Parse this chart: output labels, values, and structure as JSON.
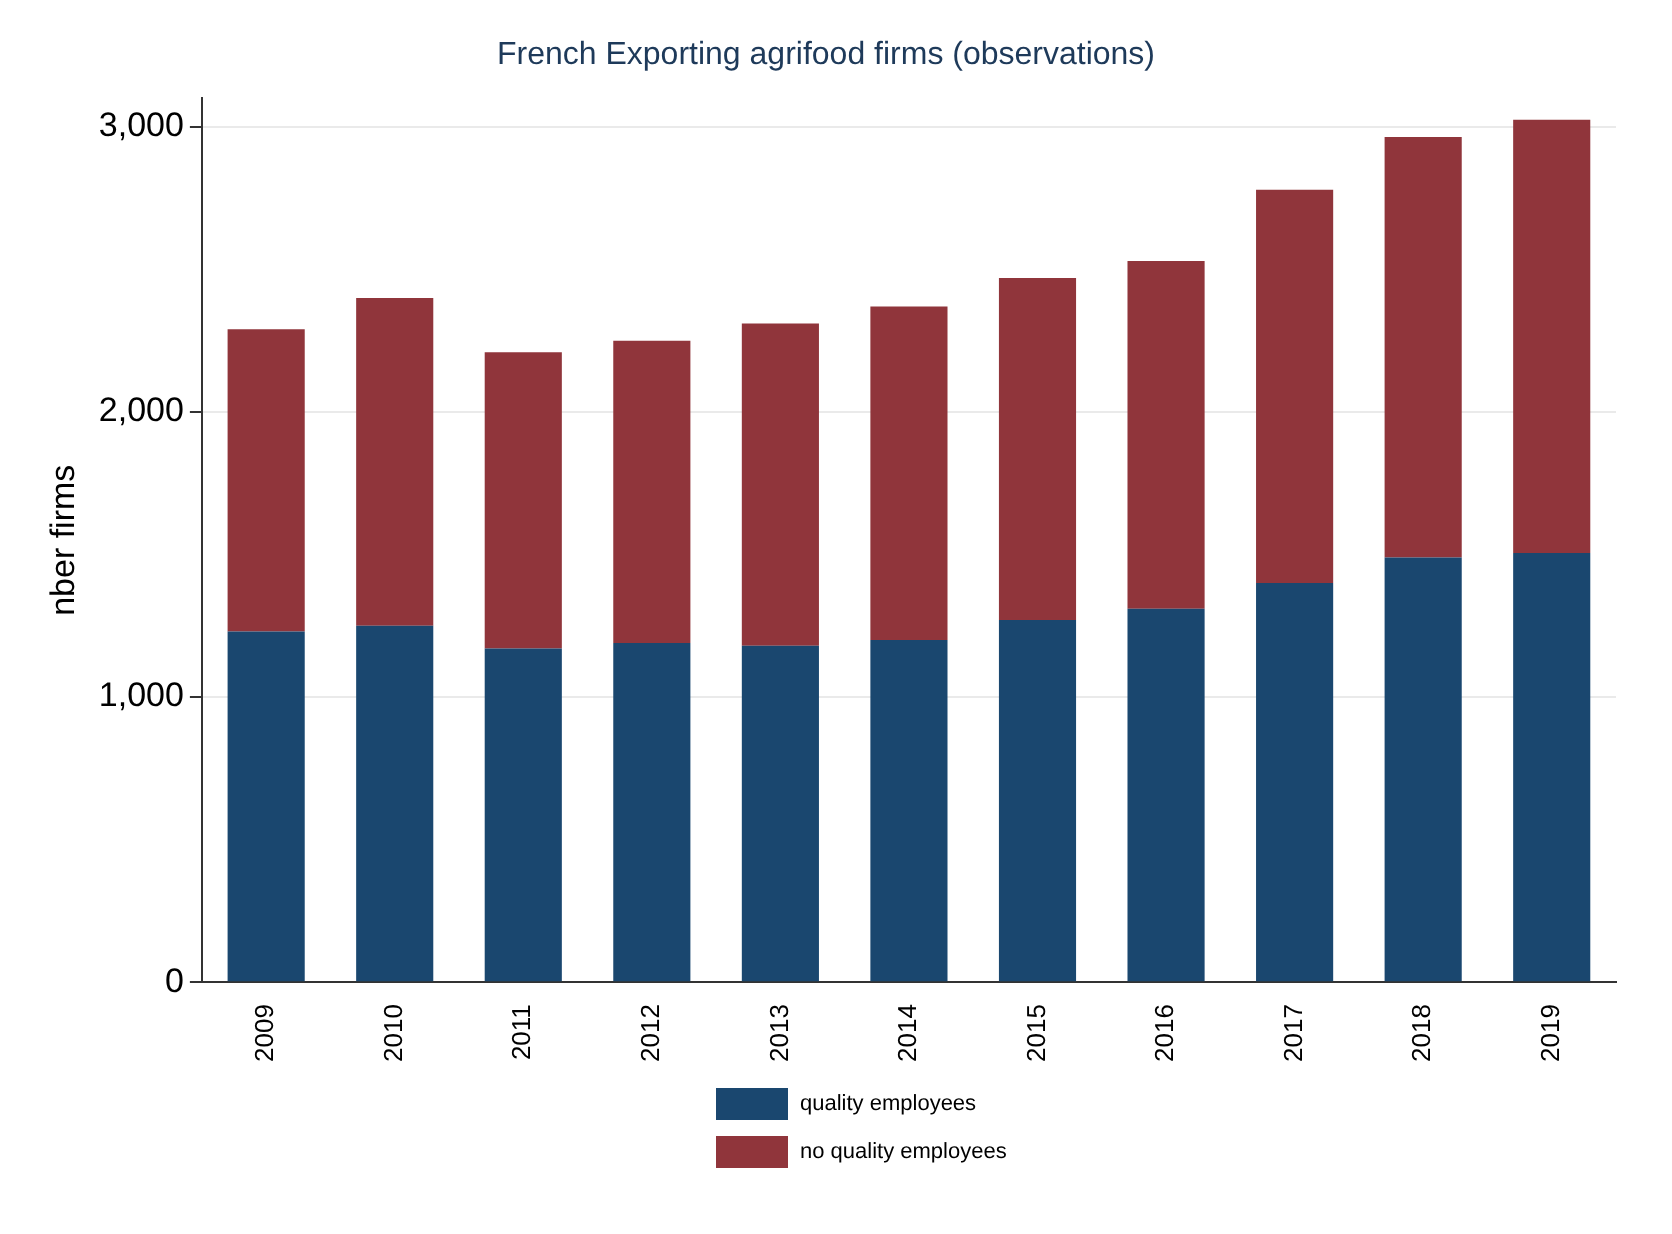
{
  "chart_data": {
    "type": "bar",
    "title": "French Exporting agrifood firms (observations)",
    "ylabel": "nber firms",
    "categories": [
      "2009",
      "2010",
      "2011",
      "2012",
      "2013",
      "2014",
      "2015",
      "2016",
      "2017",
      "2018",
      "2019"
    ],
    "series": [
      {
        "name": "quality employees",
        "color": "#1a476f",
        "values": [
          1230,
          1250,
          1170,
          1190,
          1180,
          1200,
          1270,
          1310,
          1400,
          1490,
          1505
        ]
      },
      {
        "name": "no quality employees",
        "color": "#90353b",
        "values": [
          1060,
          1150,
          1040,
          1060,
          1130,
          1170,
          1200,
          1220,
          1380,
          1475,
          1520
        ]
      }
    ],
    "stacked": true,
    "ylim": [
      0,
      3100
    ],
    "yticks": [
      {
        "value": 0,
        "label": "0"
      },
      {
        "value": 1000,
        "label": "1,000"
      },
      {
        "value": 2000,
        "label": "2,000"
      },
      {
        "value": 3000,
        "label": "3,000"
      }
    ],
    "grid": "y",
    "legend": "bottom"
  }
}
